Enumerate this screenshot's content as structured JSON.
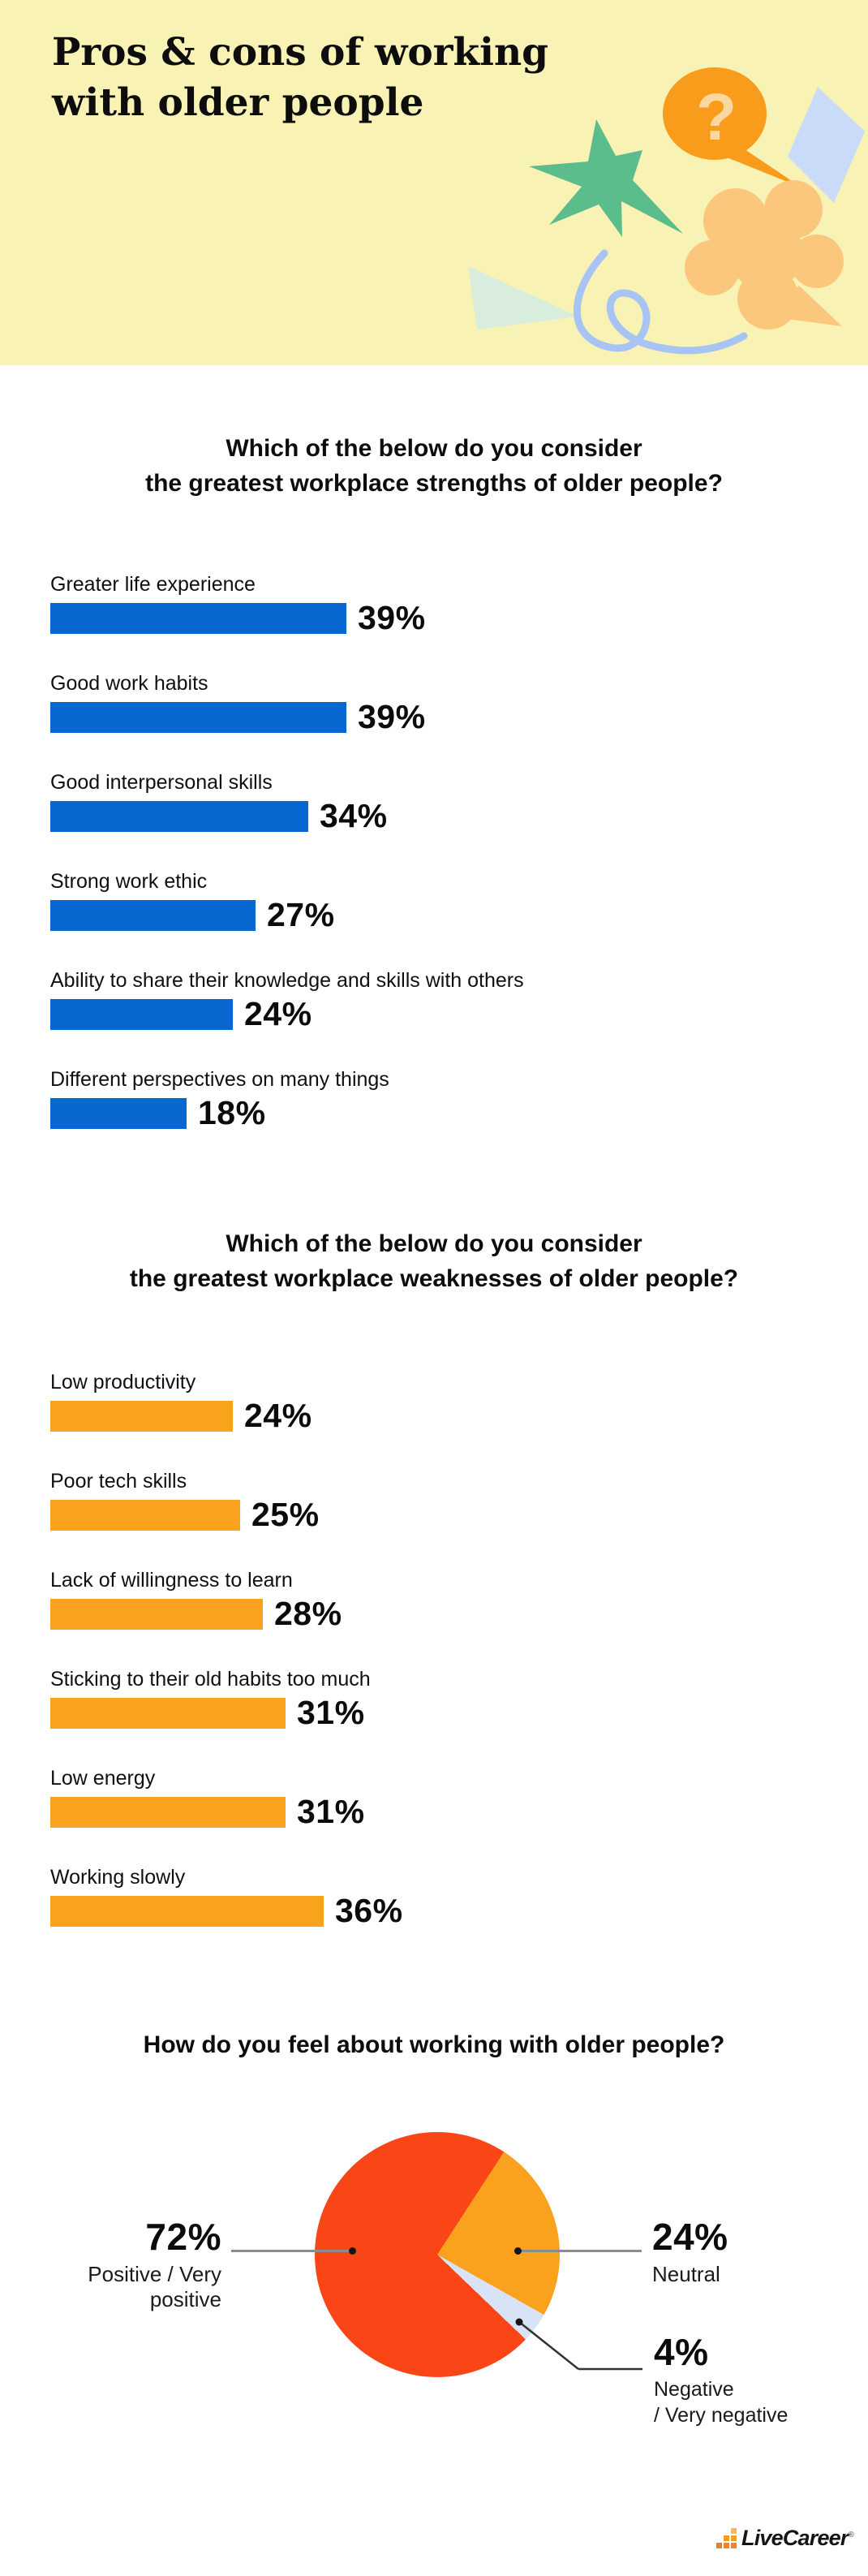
{
  "header": {
    "title_line1": "Pros & cons of working",
    "title_line2": "with older people",
    "bg_color": "#F8F2B5",
    "question_mark": "?",
    "shapes": {
      "star": "#5BBD8B",
      "bubble": "#F99C1B",
      "bubble_qmark": "#FBD8A0",
      "diamond": "#C9DBF8",
      "flower": "#FAC77D",
      "triangle": "#D8EDDC",
      "squiggle": "#A7C4F5"
    }
  },
  "chart_data": [
    {
      "type": "bar",
      "orientation": "horizontal",
      "title": "Which of the below do you consider the greatest workplace strengths of older people?",
      "title_line1": "Which of the below do you consider",
      "title_line2": "the greatest workplace strengths of older people?",
      "unit": "%",
      "bar_color": "#0667D0",
      "xlim": [
        0,
        100
      ],
      "grid": false,
      "categories": [
        "Greater life experience",
        "Good work habits",
        "Good interpersonal skills",
        "Strong work ethic",
        "Ability to share their knowledge and skills with others",
        "Different perspectives on many things"
      ],
      "values": [
        39,
        39,
        34,
        27,
        24,
        18
      ]
    },
    {
      "type": "bar",
      "orientation": "horizontal",
      "title": "Which of the below do you consider the greatest workplace weaknesses of older people?",
      "title_line1": "Which of the below do you consider",
      "title_line2": "the greatest workplace weaknesses of older people?",
      "unit": "%",
      "bar_color": "#FAA21E",
      "xlim": [
        0,
        100
      ],
      "grid": false,
      "categories": [
        "Low productivity",
        "Poor tech skills",
        "Lack of willingness to learn",
        "Sticking to their old habits too much",
        "Low energy",
        "Working slowly"
      ],
      "values": [
        24,
        25,
        28,
        31,
        31,
        36
      ]
    },
    {
      "type": "pie",
      "title": "How do you feel about working with older people?",
      "labels": [
        "Positive / Very positive",
        "Neutral",
        "Negative / Very negative"
      ],
      "values": [
        72,
        24,
        4
      ],
      "unit": "%",
      "colors": [
        "#FA4517",
        "#FAA21E",
        "#D8E4F6"
      ],
      "negative_label_lines": [
        "Negative",
        "/ Very negative"
      ],
      "legend_position": "callouts"
    }
  ],
  "footer": {
    "brand": "LiveCareer",
    "reg": "®"
  }
}
